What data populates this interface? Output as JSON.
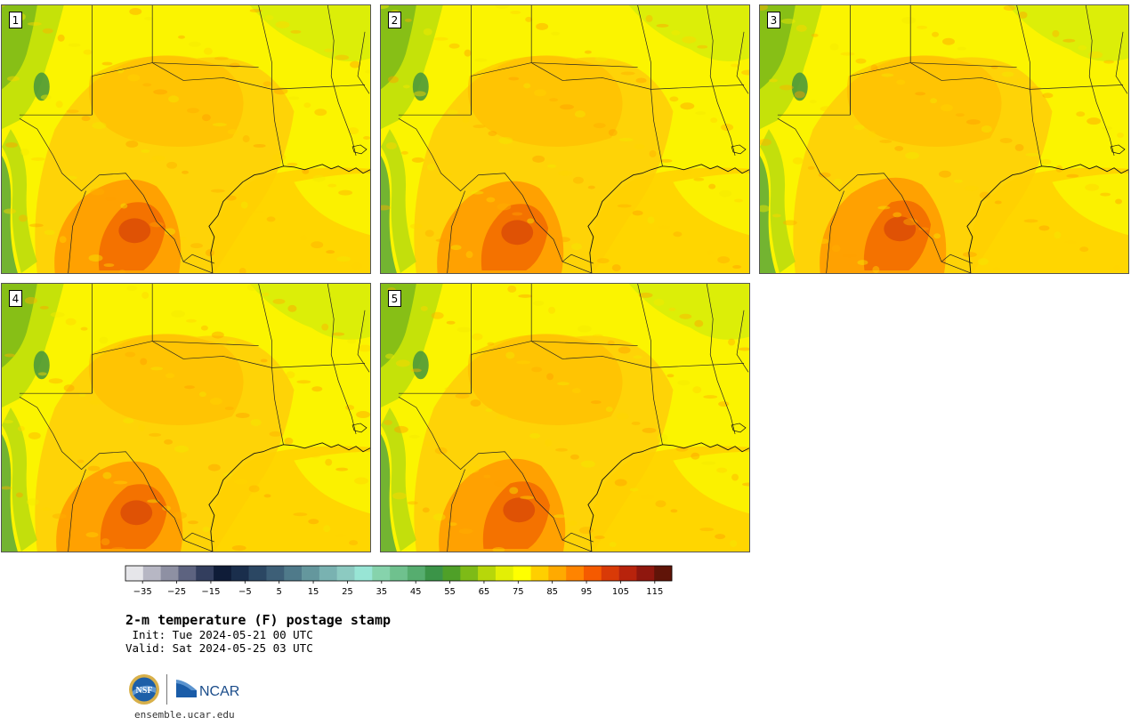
{
  "panels": [
    {
      "label": "1"
    },
    {
      "label": "2"
    },
    {
      "label": "3"
    },
    {
      "label": "4"
    },
    {
      "label": "5"
    }
  ],
  "colorbar": {
    "tick_labels": [
      "−35",
      "−25",
      "−15",
      "−5",
      "5",
      "15",
      "25",
      "35",
      "45",
      "55",
      "65",
      "75",
      "85",
      "95",
      "105",
      "115"
    ],
    "colors": [
      "#e6e6ea",
      "#b7b7c4",
      "#8e90a3",
      "#5d6380",
      "#333e5e",
      "#0f1c38",
      "#1a2e4c",
      "#2b4763",
      "#3d5f77",
      "#4f7a8a",
      "#64979d",
      "#79b2b1",
      "#8ccac1",
      "#98e5d5",
      "#86d3ac",
      "#6fc18e",
      "#56ad6f",
      "#3b9448",
      "#4fa028",
      "#7ebb17",
      "#b7d70a",
      "#e3ef05",
      "#ffff00",
      "#ffcf00",
      "#ffaa00",
      "#ff8400",
      "#f55a00",
      "#d93a07",
      "#b8230c",
      "#8f170e",
      "#601408"
    ],
    "range": [
      -40,
      120
    ]
  },
  "title": "2-m temperature (F) postage stamp",
  "init_line": " Init: Tue 2024-05-21 00 UTC",
  "valid_line": "Valid: Sat 2024-05-25 03 UTC",
  "logos": {
    "nsf_text": "NSF",
    "ncar_text": "NCAR"
  },
  "site_url": "ensemble.ucar.edu"
}
